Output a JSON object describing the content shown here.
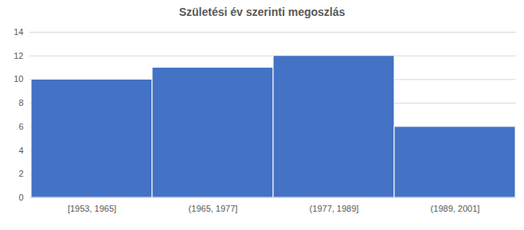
{
  "chart_data": {
    "type": "bar",
    "title": "Születési év szerinti megoszlás",
    "categories": [
      "[1953, 1965]",
      "(1965, 1977]",
      "(1977, 1989]",
      "(1989, 2001]"
    ],
    "values": [
      10,
      11,
      12,
      6
    ],
    "color": "#4472c4",
    "ylim": [
      0,
      14
    ],
    "yticks": [
      0,
      2,
      4,
      6,
      8,
      10,
      12,
      14
    ],
    "grid": true
  }
}
